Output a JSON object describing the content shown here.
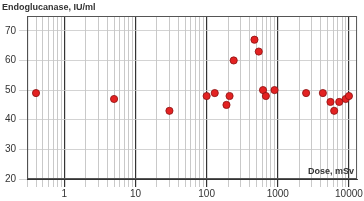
{
  "chart_data": {
    "type": "scatter",
    "x_label": "Dose, mSv",
    "y_label": "Endoglucanase, IU/ml",
    "x": [
      0.4,
      5,
      30,
      100,
      130,
      190,
      210,
      240,
      470,
      540,
      620,
      680,
      900,
      2500,
      4300,
      5500,
      6200,
      7300,
      9000,
      10000
    ],
    "values": [
      49,
      47,
      43,
      48,
      49,
      45,
      48,
      60,
      67,
      63,
      50,
      48,
      50,
      49,
      49,
      46,
      43,
      46,
      47,
      48
    ],
    "color": "#e32222",
    "marker": "circle",
    "log": "x",
    "xlim": [
      0.3,
      13000
    ],
    "xticks": [
      1,
      10,
      100,
      1000,
      10000
    ],
    "ylim": [
      20,
      75
    ],
    "yticks": [
      20,
      30,
      40,
      50,
      60,
      70
    ],
    "grid": true
  }
}
